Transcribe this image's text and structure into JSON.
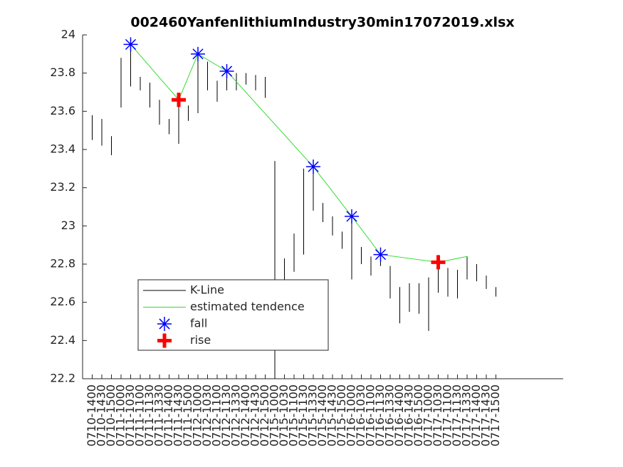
{
  "chart_data": {
    "type": "candlestick",
    "title": "002460YanfenlithiumIndustry30min17072019.xlsx",
    "categories": [
      "0710-1400",
      "0710-1430",
      "0710-1500",
      "0711-1000",
      "0711-1030",
      "0711-1100",
      "0711-1130",
      "0711-1330",
      "0711-1400",
      "0711-1430",
      "0711-1500",
      "0712-1000",
      "0712-1030",
      "0712-1100",
      "0712-1130",
      "0712-1330",
      "0712-1400",
      "0712-1430",
      "0712-1500",
      "0715-1000",
      "0715-1030",
      "0715-1100",
      "0715-1130",
      "0715-1330",
      "0715-1400",
      "0715-1430",
      "0715-1500",
      "0716-1000",
      "0716-1030",
      "0716-1100",
      "0716-1130",
      "0716-1330",
      "0716-1400",
      "0716-1430",
      "0716-1500",
      "0717-1000",
      "0717-1030",
      "0717-1100",
      "0717-1130",
      "0717-1330",
      "0717-1400",
      "0717-1430",
      "0717-1500"
    ],
    "ylim": [
      22.2,
      24
    ],
    "yticks": [
      22.2,
      22.4,
      22.6,
      22.8,
      23,
      23.2,
      23.4,
      23.6,
      23.8,
      24
    ],
    "legend": "lower-left",
    "series": [
      {
        "name": "K-Line",
        "color": "#000000",
        "high": [
          23.58,
          23.56,
          23.47,
          23.88,
          23.95,
          23.78,
          23.75,
          23.66,
          23.56,
          23.69,
          23.63,
          23.88,
          23.86,
          23.76,
          23.82,
          23.8,
          23.8,
          23.79,
          23.78,
          23.34,
          22.83,
          22.96,
          23.3,
          23.31,
          23.12,
          23.05,
          22.97,
          23.05,
          22.89,
          22.84,
          22.86,
          22.79,
          22.68,
          22.7,
          22.7,
          22.73,
          22.81,
          22.78,
          22.77,
          22.84,
          22.8,
          22.74,
          22.68
        ],
        "low": [
          23.45,
          23.42,
          23.37,
          23.62,
          23.73,
          23.71,
          23.62,
          23.53,
          23.48,
          23.43,
          23.55,
          23.59,
          23.71,
          23.65,
          23.71,
          23.71,
          23.74,
          23.71,
          23.67,
          22.2,
          22.72,
          22.76,
          22.85,
          23.08,
          23.02,
          22.95,
          22.88,
          22.72,
          22.8,
          22.74,
          22.79,
          22.62,
          22.49,
          22.55,
          22.54,
          22.45,
          22.65,
          22.63,
          22.62,
          22.72,
          22.71,
          22.67,
          22.63
        ]
      },
      {
        "name": "estimated tendence",
        "color": "#33dd33",
        "x": [
          5,
          10,
          12,
          15,
          24,
          28,
          31,
          37,
          40
        ],
        "values": [
          23.95,
          23.66,
          23.9,
          23.81,
          23.31,
          23.05,
          22.85,
          22.81,
          22.84
        ]
      },
      {
        "name": "fall",
        "color": "#0000ff",
        "x": [
          5,
          12,
          15,
          24,
          28,
          31
        ],
        "values": [
          23.95,
          23.9,
          23.81,
          23.31,
          23.05,
          22.85
        ]
      },
      {
        "name": "rise",
        "color": "#ff0000",
        "x": [
          10,
          37
        ],
        "values": [
          23.66,
          22.81
        ]
      }
    ]
  }
}
